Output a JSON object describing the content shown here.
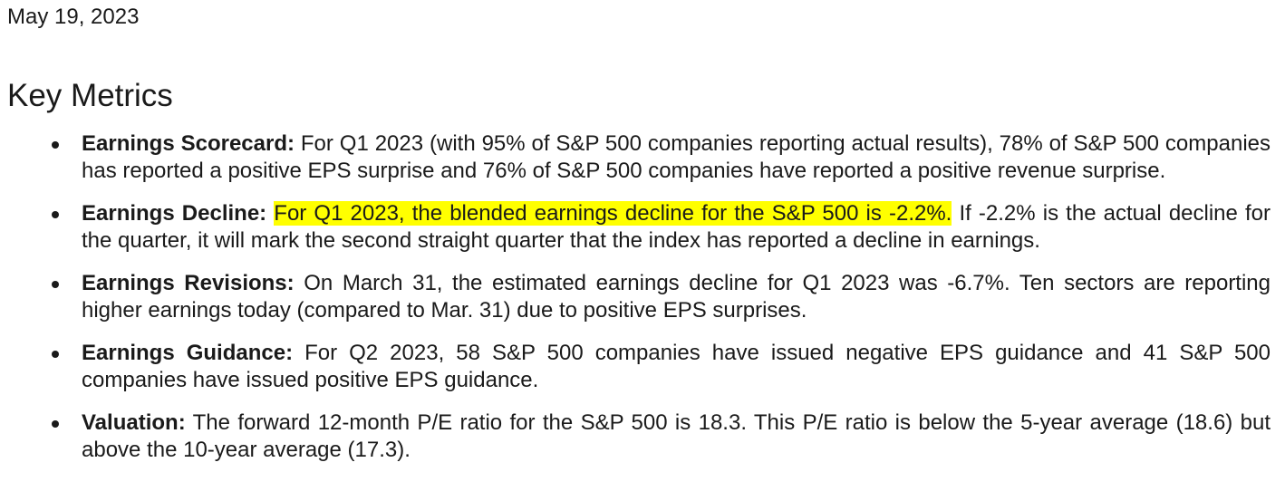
{
  "date": "May 19, 2023",
  "heading": "Key Metrics",
  "bullets": [
    {
      "label": "Earnings Scorecard:",
      "highlight": "",
      "text": " For Q1 2023 (with 95% of S&P 500 companies reporting actual results), 78% of S&P 500 companies has reported a positive EPS surprise and 76% of S&P 500 companies have reported a positive revenue surprise."
    },
    {
      "label": "Earnings Decline:",
      "highlight": "For Q1 2023, the blended earnings decline for the S&P 500 is -2.2%.",
      "text": " If -2.2% is the actual decline for the quarter, it will mark the second straight quarter that the index has reported a decline in earnings."
    },
    {
      "label": "Earnings Revisions:",
      "highlight": "",
      "text": " On March 31, the estimated earnings decline for Q1 2023 was -6.7%. Ten sectors are reporting higher earnings today (compared to Mar. 31) due to positive EPS surprises."
    },
    {
      "label": "Earnings Guidance:",
      "highlight": "",
      "text": " For Q2 2023, 58 S&P 500 companies have issued negative EPS guidance and 41 S&P 500 companies have issued positive EPS guidance."
    },
    {
      "label": "Valuation:",
      "highlight": "",
      "text": " The forward 12-month P/E ratio for the S&P 500 is 18.3. This P/E ratio is below the 5-year average (18.6) but above the 10-year average (17.3)."
    }
  ],
  "colors": {
    "highlight": "#ffff00",
    "text": "#1a1a1a"
  }
}
